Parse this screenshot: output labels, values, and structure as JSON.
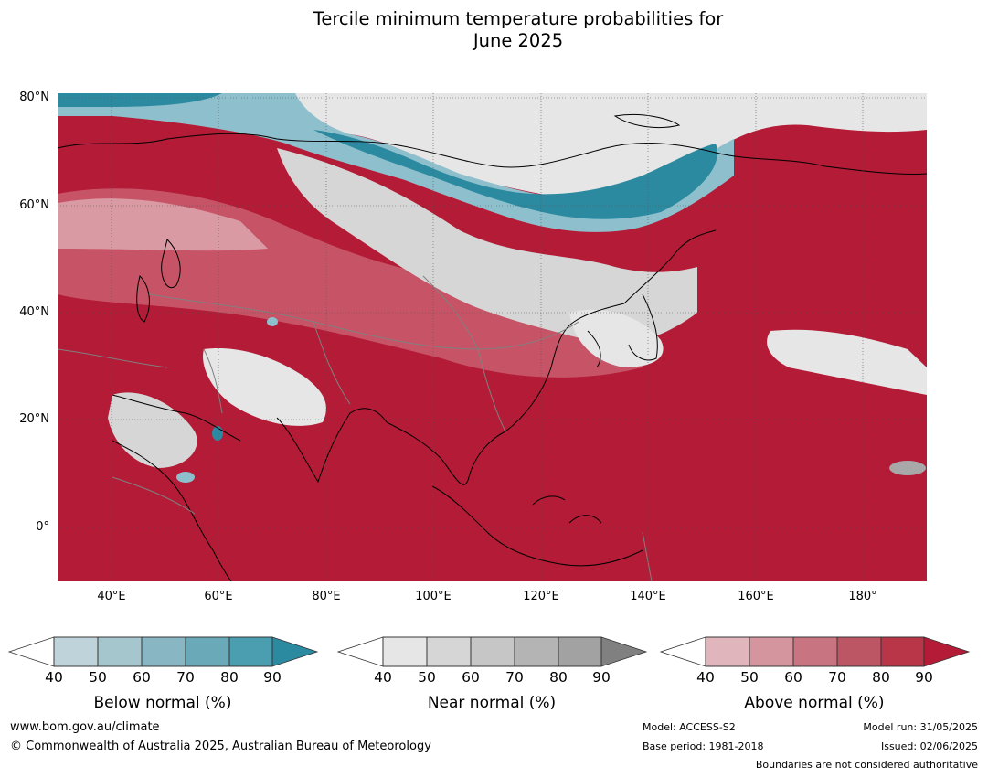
{
  "title_line1": "Tercile minimum temperature probabilities for",
  "title_line2": "June 2025",
  "map": {
    "lat_labels": [
      "80°N",
      "60°N",
      "40°N",
      "20°N",
      "0°"
    ],
    "lon_labels": [
      "40°E",
      "60°E",
      "80°E",
      "100°E",
      "120°E",
      "140°E",
      "160°E",
      "180°"
    ],
    "colors": {
      "above": "#b31b36",
      "above_mid": "#c75366",
      "above_light": "#d99aa3",
      "near": "#d6d6d6",
      "near_dark": "#a8a8a8",
      "below": "#2c8aa0",
      "below_light": "#8ebfcc",
      "grid": "#555555",
      "coast": "#000000",
      "border": "#808080"
    }
  },
  "legends": [
    {
      "label": "Below normal (%)",
      "ticks": [
        "40",
        "50",
        "60",
        "70",
        "80",
        "90"
      ],
      "colors": [
        "#bfd3da",
        "#a6c6ce",
        "#88b6c2",
        "#6aaab8",
        "#4a9eb0",
        "#2c8aa0"
      ]
    },
    {
      "label": "Near normal (%)",
      "ticks": [
        "40",
        "50",
        "60",
        "70",
        "80",
        "90"
      ],
      "colors": [
        "#e6e6e6",
        "#d6d6d6",
        "#c6c6c6",
        "#b4b4b4",
        "#a2a2a2",
        "#808080"
      ]
    },
    {
      "label": "Above normal (%)",
      "ticks": [
        "40",
        "50",
        "60",
        "70",
        "80",
        "90"
      ],
      "colors": [
        "#e0b5bc",
        "#d4959f",
        "#c87481",
        "#bc5564",
        "#b83648",
        "#b31b36"
      ]
    }
  ],
  "footer": {
    "website": "www.bom.gov.au/climate",
    "copyright": "© Commonwealth of Australia 2025, Australian Bureau of Meteorology",
    "model": "Model: ACCESS-S2",
    "base_period": "Base period: 1981-2018",
    "model_run": "Model run: 31/05/2025",
    "issued": "Issued: 02/06/2025",
    "disclaimer": "Boundaries are not considered authoritative"
  }
}
